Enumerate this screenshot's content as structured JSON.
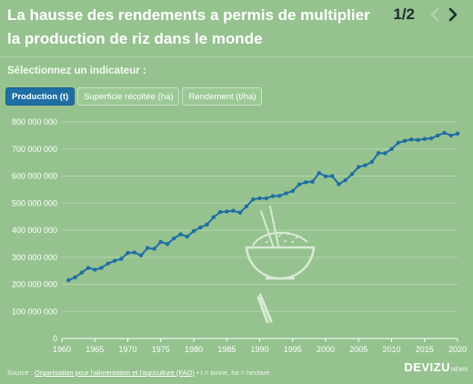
{
  "header": {
    "title": "La hausse des rendements a permis de multiplier la production de riz dans le monde",
    "pager": "1/2"
  },
  "selector": {
    "prompt": "Sélectionnez un indicateur :",
    "tabs": [
      {
        "label": "Production (t)",
        "active": true
      },
      {
        "label": "Superficie récoltée (ha)",
        "active": false
      },
      {
        "label": "Rendement (t/ha)",
        "active": false
      }
    ]
  },
  "footer": {
    "source_prefix": "Source : ",
    "source_link": "Organisation pour l'alimentation et l'agriculture (FAO)",
    "source_suffix": " • t = tonne, ha = hectare"
  },
  "brand": {
    "name": "DEVIZU",
    "suffix": "NEWS"
  },
  "icons": [
    "chevron-left-icon",
    "chevron-right-icon",
    "rice-bowl-icon"
  ],
  "colors": {
    "background": "#95c28f",
    "line": "#1f6ea4",
    "accent": "#1f6ea4",
    "grid": "#b4d4ae"
  },
  "chart_data": {
    "type": "line",
    "ylim": [
      0,
      800000000
    ],
    "xlim": [
      1960,
      2020
    ],
    "grid": true,
    "x_ticks": [
      1960,
      1965,
      1970,
      1975,
      1980,
      1985,
      1990,
      1995,
      2000,
      2005,
      2010,
      2015,
      2020
    ],
    "y_ticks": [
      0,
      100000000,
      200000000,
      300000000,
      400000000,
      500000000,
      600000000,
      700000000,
      800000000
    ],
    "y_tick_labels": [
      "0",
      "100 000 000",
      "200 000 000",
      "300 000 000",
      "400 000 000",
      "500 000 000",
      "600 000 000",
      "700 000 000",
      "800 000 000"
    ],
    "series": [
      {
        "x": [
          1961,
          1962,
          1963,
          1964,
          1965,
          1966,
          1967,
          1968,
          1969,
          1970,
          1971,
          1972,
          1973,
          1974,
          1975,
          1976,
          1977,
          1978,
          1979,
          1980,
          1981,
          1982,
          1983,
          1984,
          1985,
          1986,
          1987,
          1988,
          1989,
          1990,
          1991,
          1992,
          1993,
          1994,
          1995,
          1996,
          1997,
          1998,
          1999,
          2000,
          2001,
          2002,
          2003,
          2004,
          2005,
          2006,
          2007,
          2008,
          2009,
          2010,
          2011,
          2012,
          2013,
          2014,
          2015,
          2016,
          2017,
          2018,
          2019,
          2020
        ],
        "values": [
          215000000,
          226000000,
          243000000,
          261000000,
          254000000,
          261000000,
          277000000,
          287000000,
          294000000,
          316000000,
          318000000,
          307000000,
          334000000,
          331000000,
          357000000,
          349000000,
          370000000,
          385000000,
          376000000,
          397000000,
          410000000,
          421000000,
          448000000,
          467000000,
          469000000,
          472000000,
          465000000,
          488000000,
          514000000,
          518000000,
          518000000,
          526000000,
          527000000,
          536000000,
          545000000,
          569000000,
          577000000,
          579000000,
          611000000,
          599000000,
          600000000,
          570000000,
          585000000,
          607000000,
          634000000,
          640000000,
          652000000,
          685000000,
          684000000,
          700000000,
          723000000,
          730000000,
          735000000,
          733000000,
          737000000,
          739000000,
          750000000,
          760000000,
          750000000,
          757000000
        ]
      }
    ]
  }
}
